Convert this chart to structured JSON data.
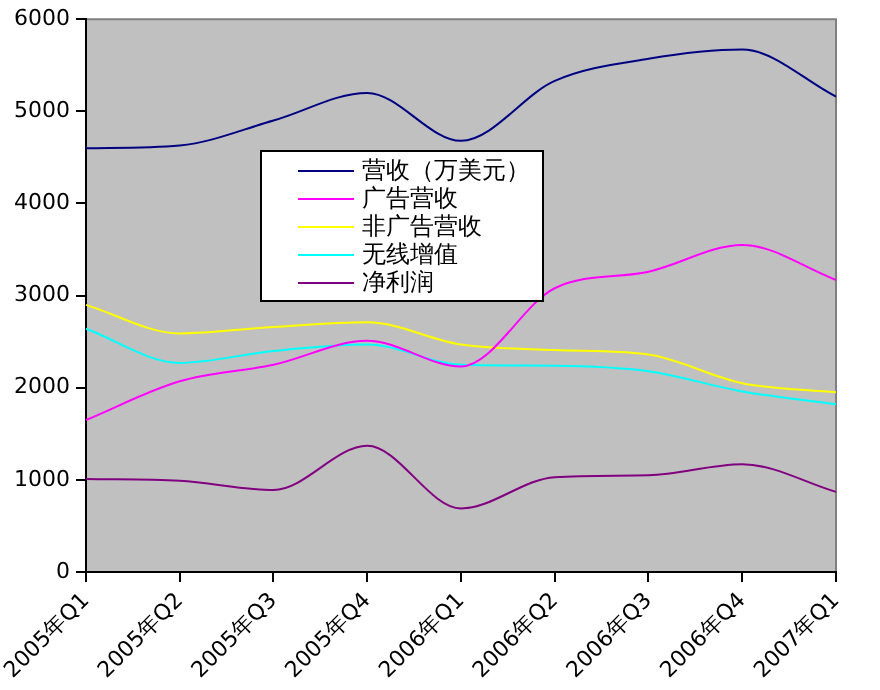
{
  "chart_data": {
    "type": "line",
    "categories": [
      "2005年Q1",
      "2005年Q2",
      "2005年Q3",
      "2005年Q4",
      "2006年Q1",
      "2006年Q2",
      "2006年Q3",
      "2006年Q4",
      "2007年Q1"
    ],
    "series": [
      {
        "name": "营收（万美元）",
        "color": "#000080",
        "values": [
          4600,
          4630,
          4900,
          5200,
          4680,
          5330,
          5570,
          5670,
          5160
        ]
      },
      {
        "name": "广告营收",
        "color": "#ff00ff",
        "values": [
          1650,
          2070,
          2250,
          2510,
          2230,
          3080,
          3260,
          3550,
          3170
        ]
      },
      {
        "name": "非广告营收",
        "color": "#ffff00",
        "values": [
          2900,
          2590,
          2660,
          2710,
          2470,
          2410,
          2360,
          2050,
          1950
        ]
      },
      {
        "name": "无线增值",
        "color": "#00ffff",
        "values": [
          2640,
          2270,
          2400,
          2470,
          2250,
          2240,
          2180,
          1960,
          1820
        ]
      },
      {
        "name": "净利润",
        "color": "#800080",
        "values": [
          1010,
          990,
          890,
          1370,
          690,
          1030,
          1050,
          1170,
          870
        ]
      }
    ],
    "ylim": [
      0,
      6000
    ],
    "yticks": [
      0,
      1000,
      2000,
      3000,
      4000,
      5000,
      6000
    ],
    "grid": false,
    "legend": "center",
    "marker": "none",
    "line_style": "solid"
  }
}
